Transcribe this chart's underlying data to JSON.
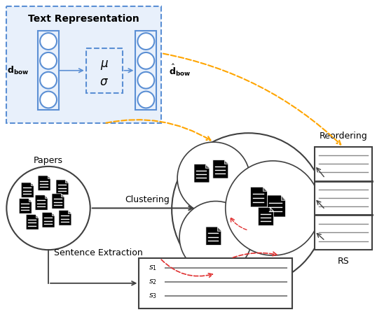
{
  "bg_color": "#ffffff",
  "text_repr_label": "Text Representation",
  "blue_edge": "#5b8fd4",
  "blue_fill": "#e8f0fb",
  "dark": "#404040",
  "orange": "#FFA500",
  "red": "#e03030",
  "papers_label": "Papers",
  "clustering_label": "Clustering",
  "sentence_extraction_label": "Sentence Extraction",
  "reordering_label": "Reordering",
  "rs_label": "RS"
}
